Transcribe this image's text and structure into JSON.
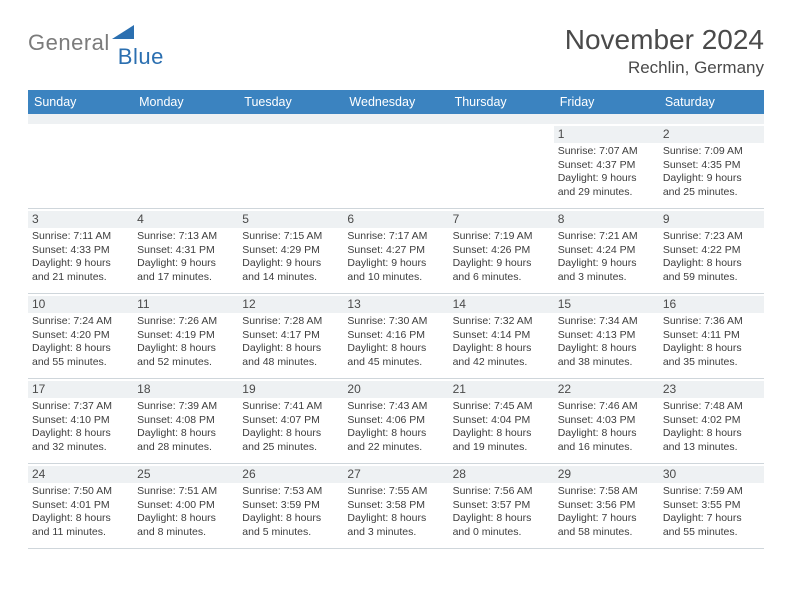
{
  "brand": {
    "gray": "General",
    "blue": "Blue"
  },
  "title": "November 2024",
  "location": "Rechlin, Germany",
  "colors": {
    "header_bg": "#3b83c0",
    "header_text": "#ffffff",
    "daynum_bg": "#eef1f3",
    "text": "#3d3d3d",
    "title_text": "#4a4a4a",
    "border": "#cfd6db"
  },
  "day_headers": [
    "Sunday",
    "Monday",
    "Tuesday",
    "Wednesday",
    "Thursday",
    "Friday",
    "Saturday"
  ],
  "weeks": [
    [
      {
        "n": "",
        "sunrise": "",
        "sunset": "",
        "daylight": ""
      },
      {
        "n": "",
        "sunrise": "",
        "sunset": "",
        "daylight": ""
      },
      {
        "n": "",
        "sunrise": "",
        "sunset": "",
        "daylight": ""
      },
      {
        "n": "",
        "sunrise": "",
        "sunset": "",
        "daylight": ""
      },
      {
        "n": "",
        "sunrise": "",
        "sunset": "",
        "daylight": ""
      },
      {
        "n": "1",
        "sunrise": "Sunrise: 7:07 AM",
        "sunset": "Sunset: 4:37 PM",
        "daylight": "Daylight: 9 hours and 29 minutes."
      },
      {
        "n": "2",
        "sunrise": "Sunrise: 7:09 AM",
        "sunset": "Sunset: 4:35 PM",
        "daylight": "Daylight: 9 hours and 25 minutes."
      }
    ],
    [
      {
        "n": "3",
        "sunrise": "Sunrise: 7:11 AM",
        "sunset": "Sunset: 4:33 PM",
        "daylight": "Daylight: 9 hours and 21 minutes."
      },
      {
        "n": "4",
        "sunrise": "Sunrise: 7:13 AM",
        "sunset": "Sunset: 4:31 PM",
        "daylight": "Daylight: 9 hours and 17 minutes."
      },
      {
        "n": "5",
        "sunrise": "Sunrise: 7:15 AM",
        "sunset": "Sunset: 4:29 PM",
        "daylight": "Daylight: 9 hours and 14 minutes."
      },
      {
        "n": "6",
        "sunrise": "Sunrise: 7:17 AM",
        "sunset": "Sunset: 4:27 PM",
        "daylight": "Daylight: 9 hours and 10 minutes."
      },
      {
        "n": "7",
        "sunrise": "Sunrise: 7:19 AM",
        "sunset": "Sunset: 4:26 PM",
        "daylight": "Daylight: 9 hours and 6 minutes."
      },
      {
        "n": "8",
        "sunrise": "Sunrise: 7:21 AM",
        "sunset": "Sunset: 4:24 PM",
        "daylight": "Daylight: 9 hours and 3 minutes."
      },
      {
        "n": "9",
        "sunrise": "Sunrise: 7:23 AM",
        "sunset": "Sunset: 4:22 PM",
        "daylight": "Daylight: 8 hours and 59 minutes."
      }
    ],
    [
      {
        "n": "10",
        "sunrise": "Sunrise: 7:24 AM",
        "sunset": "Sunset: 4:20 PM",
        "daylight": "Daylight: 8 hours and 55 minutes."
      },
      {
        "n": "11",
        "sunrise": "Sunrise: 7:26 AM",
        "sunset": "Sunset: 4:19 PM",
        "daylight": "Daylight: 8 hours and 52 minutes."
      },
      {
        "n": "12",
        "sunrise": "Sunrise: 7:28 AM",
        "sunset": "Sunset: 4:17 PM",
        "daylight": "Daylight: 8 hours and 48 minutes."
      },
      {
        "n": "13",
        "sunrise": "Sunrise: 7:30 AM",
        "sunset": "Sunset: 4:16 PM",
        "daylight": "Daylight: 8 hours and 45 minutes."
      },
      {
        "n": "14",
        "sunrise": "Sunrise: 7:32 AM",
        "sunset": "Sunset: 4:14 PM",
        "daylight": "Daylight: 8 hours and 42 minutes."
      },
      {
        "n": "15",
        "sunrise": "Sunrise: 7:34 AM",
        "sunset": "Sunset: 4:13 PM",
        "daylight": "Daylight: 8 hours and 38 minutes."
      },
      {
        "n": "16",
        "sunrise": "Sunrise: 7:36 AM",
        "sunset": "Sunset: 4:11 PM",
        "daylight": "Daylight: 8 hours and 35 minutes."
      }
    ],
    [
      {
        "n": "17",
        "sunrise": "Sunrise: 7:37 AM",
        "sunset": "Sunset: 4:10 PM",
        "daylight": "Daylight: 8 hours and 32 minutes."
      },
      {
        "n": "18",
        "sunrise": "Sunrise: 7:39 AM",
        "sunset": "Sunset: 4:08 PM",
        "daylight": "Daylight: 8 hours and 28 minutes."
      },
      {
        "n": "19",
        "sunrise": "Sunrise: 7:41 AM",
        "sunset": "Sunset: 4:07 PM",
        "daylight": "Daylight: 8 hours and 25 minutes."
      },
      {
        "n": "20",
        "sunrise": "Sunrise: 7:43 AM",
        "sunset": "Sunset: 4:06 PM",
        "daylight": "Daylight: 8 hours and 22 minutes."
      },
      {
        "n": "21",
        "sunrise": "Sunrise: 7:45 AM",
        "sunset": "Sunset: 4:04 PM",
        "daylight": "Daylight: 8 hours and 19 minutes."
      },
      {
        "n": "22",
        "sunrise": "Sunrise: 7:46 AM",
        "sunset": "Sunset: 4:03 PM",
        "daylight": "Daylight: 8 hours and 16 minutes."
      },
      {
        "n": "23",
        "sunrise": "Sunrise: 7:48 AM",
        "sunset": "Sunset: 4:02 PM",
        "daylight": "Daylight: 8 hours and 13 minutes."
      }
    ],
    [
      {
        "n": "24",
        "sunrise": "Sunrise: 7:50 AM",
        "sunset": "Sunset: 4:01 PM",
        "daylight": "Daylight: 8 hours and 11 minutes."
      },
      {
        "n": "25",
        "sunrise": "Sunrise: 7:51 AM",
        "sunset": "Sunset: 4:00 PM",
        "daylight": "Daylight: 8 hours and 8 minutes."
      },
      {
        "n": "26",
        "sunrise": "Sunrise: 7:53 AM",
        "sunset": "Sunset: 3:59 PM",
        "daylight": "Daylight: 8 hours and 5 minutes."
      },
      {
        "n": "27",
        "sunrise": "Sunrise: 7:55 AM",
        "sunset": "Sunset: 3:58 PM",
        "daylight": "Daylight: 8 hours and 3 minutes."
      },
      {
        "n": "28",
        "sunrise": "Sunrise: 7:56 AM",
        "sunset": "Sunset: 3:57 PM",
        "daylight": "Daylight: 8 hours and 0 minutes."
      },
      {
        "n": "29",
        "sunrise": "Sunrise: 7:58 AM",
        "sunset": "Sunset: 3:56 PM",
        "daylight": "Daylight: 7 hours and 58 minutes."
      },
      {
        "n": "30",
        "sunrise": "Sunrise: 7:59 AM",
        "sunset": "Sunset: 3:55 PM",
        "daylight": "Daylight: 7 hours and 55 minutes."
      }
    ]
  ]
}
